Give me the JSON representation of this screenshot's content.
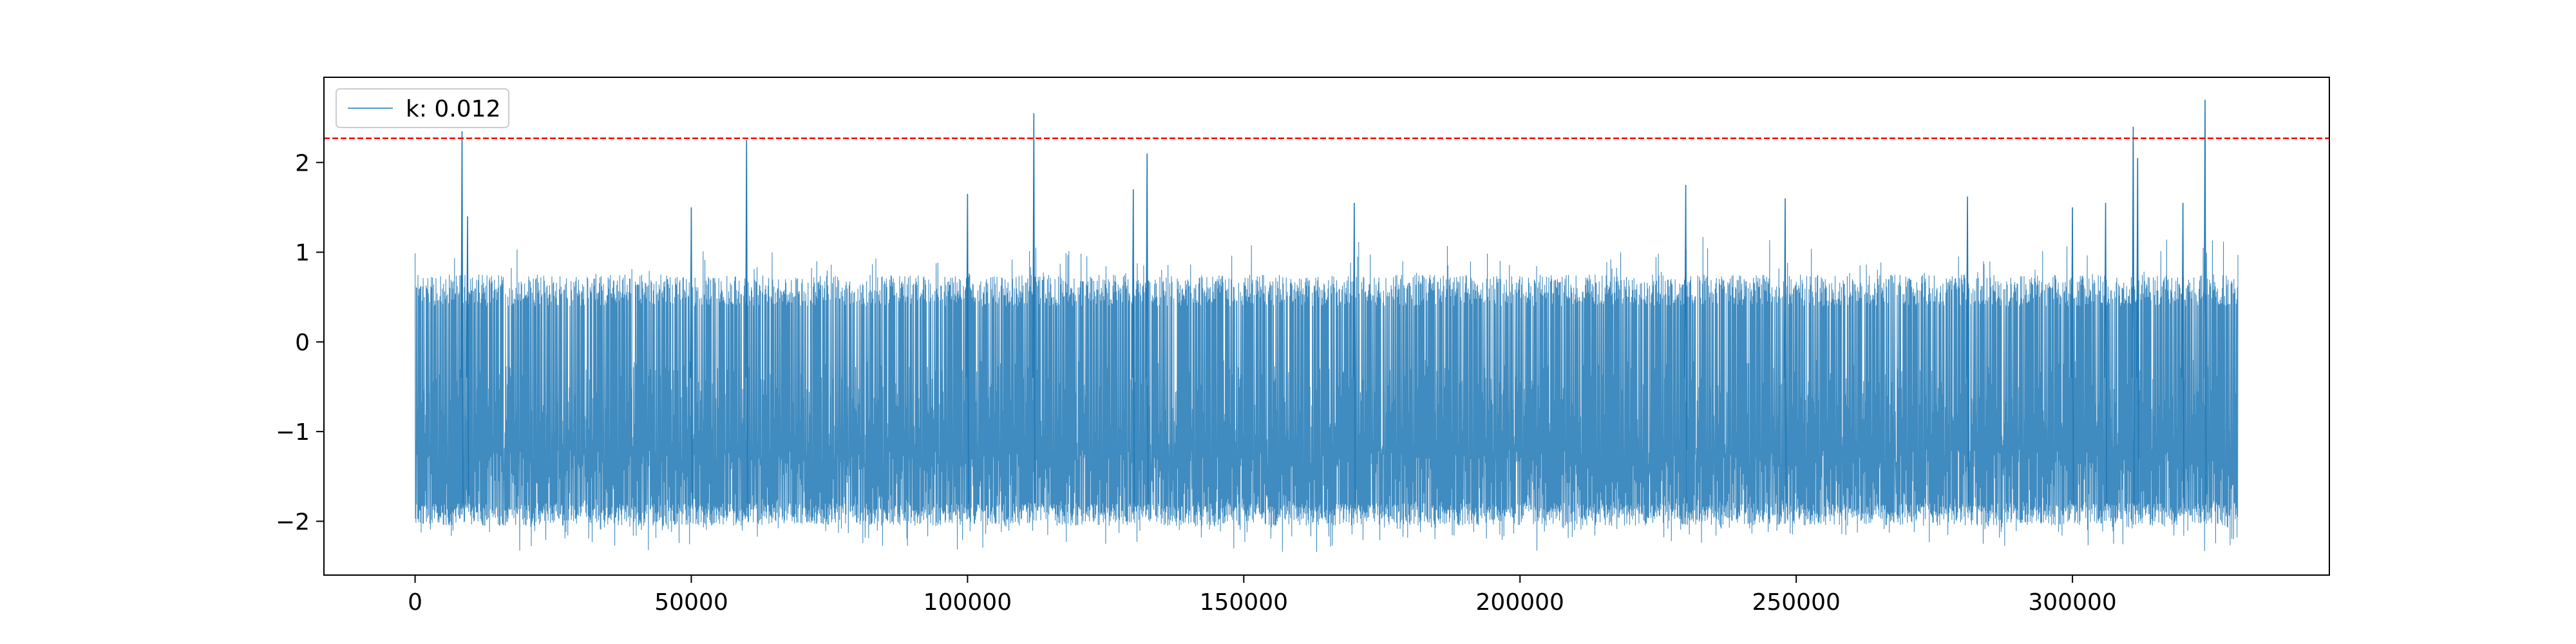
{
  "chart_data": {
    "type": "line",
    "title": "",
    "xlabel": "",
    "ylabel": "",
    "xlim": [
      -16500,
      346500
    ],
    "ylim": [
      -2.6,
      2.95
    ],
    "x_range": [
      0,
      330000
    ],
    "xticks": [
      0,
      50000,
      100000,
      150000,
      200000,
      250000,
      300000
    ],
    "yticks": [
      -2,
      -1,
      0,
      1,
      2
    ],
    "ytick_labels": [
      "−2",
      "−1",
      "0",
      "1",
      "2"
    ],
    "grid": false,
    "legend": {
      "position": "upper-left",
      "entries": [
        "k: 0.012"
      ]
    },
    "series": [
      {
        "name": "k: 0.012",
        "color": "#1f77b4",
        "typical_upper": 0.75,
        "typical_lower": -2.05,
        "min": -2.4,
        "spikes": [
          {
            "x": 8500,
            "y": 2.35
          },
          {
            "x": 60000,
            "y": 2.25
          },
          {
            "x": 112000,
            "y": 2.55
          },
          {
            "x": 132500,
            "y": 2.1
          },
          {
            "x": 311000,
            "y": 2.4
          },
          {
            "x": 311800,
            "y": 2.05
          },
          {
            "x": 324000,
            "y": 2.7
          },
          {
            "x": 9500,
            "y": 1.4
          },
          {
            "x": 50000,
            "y": 1.5
          },
          {
            "x": 100000,
            "y": 1.65
          },
          {
            "x": 130000,
            "y": 1.7
          },
          {
            "x": 170000,
            "y": 1.55
          },
          {
            "x": 230000,
            "y": 1.75
          },
          {
            "x": 248000,
            "y": 1.6
          },
          {
            "x": 281000,
            "y": 1.62
          },
          {
            "x": 300000,
            "y": 1.5
          },
          {
            "x": 306000,
            "y": 1.55
          },
          {
            "x": 320000,
            "y": 1.55
          }
        ]
      }
    ],
    "threshold": {
      "y": 2.27,
      "color": "#ff0000",
      "style": "dashed"
    }
  }
}
